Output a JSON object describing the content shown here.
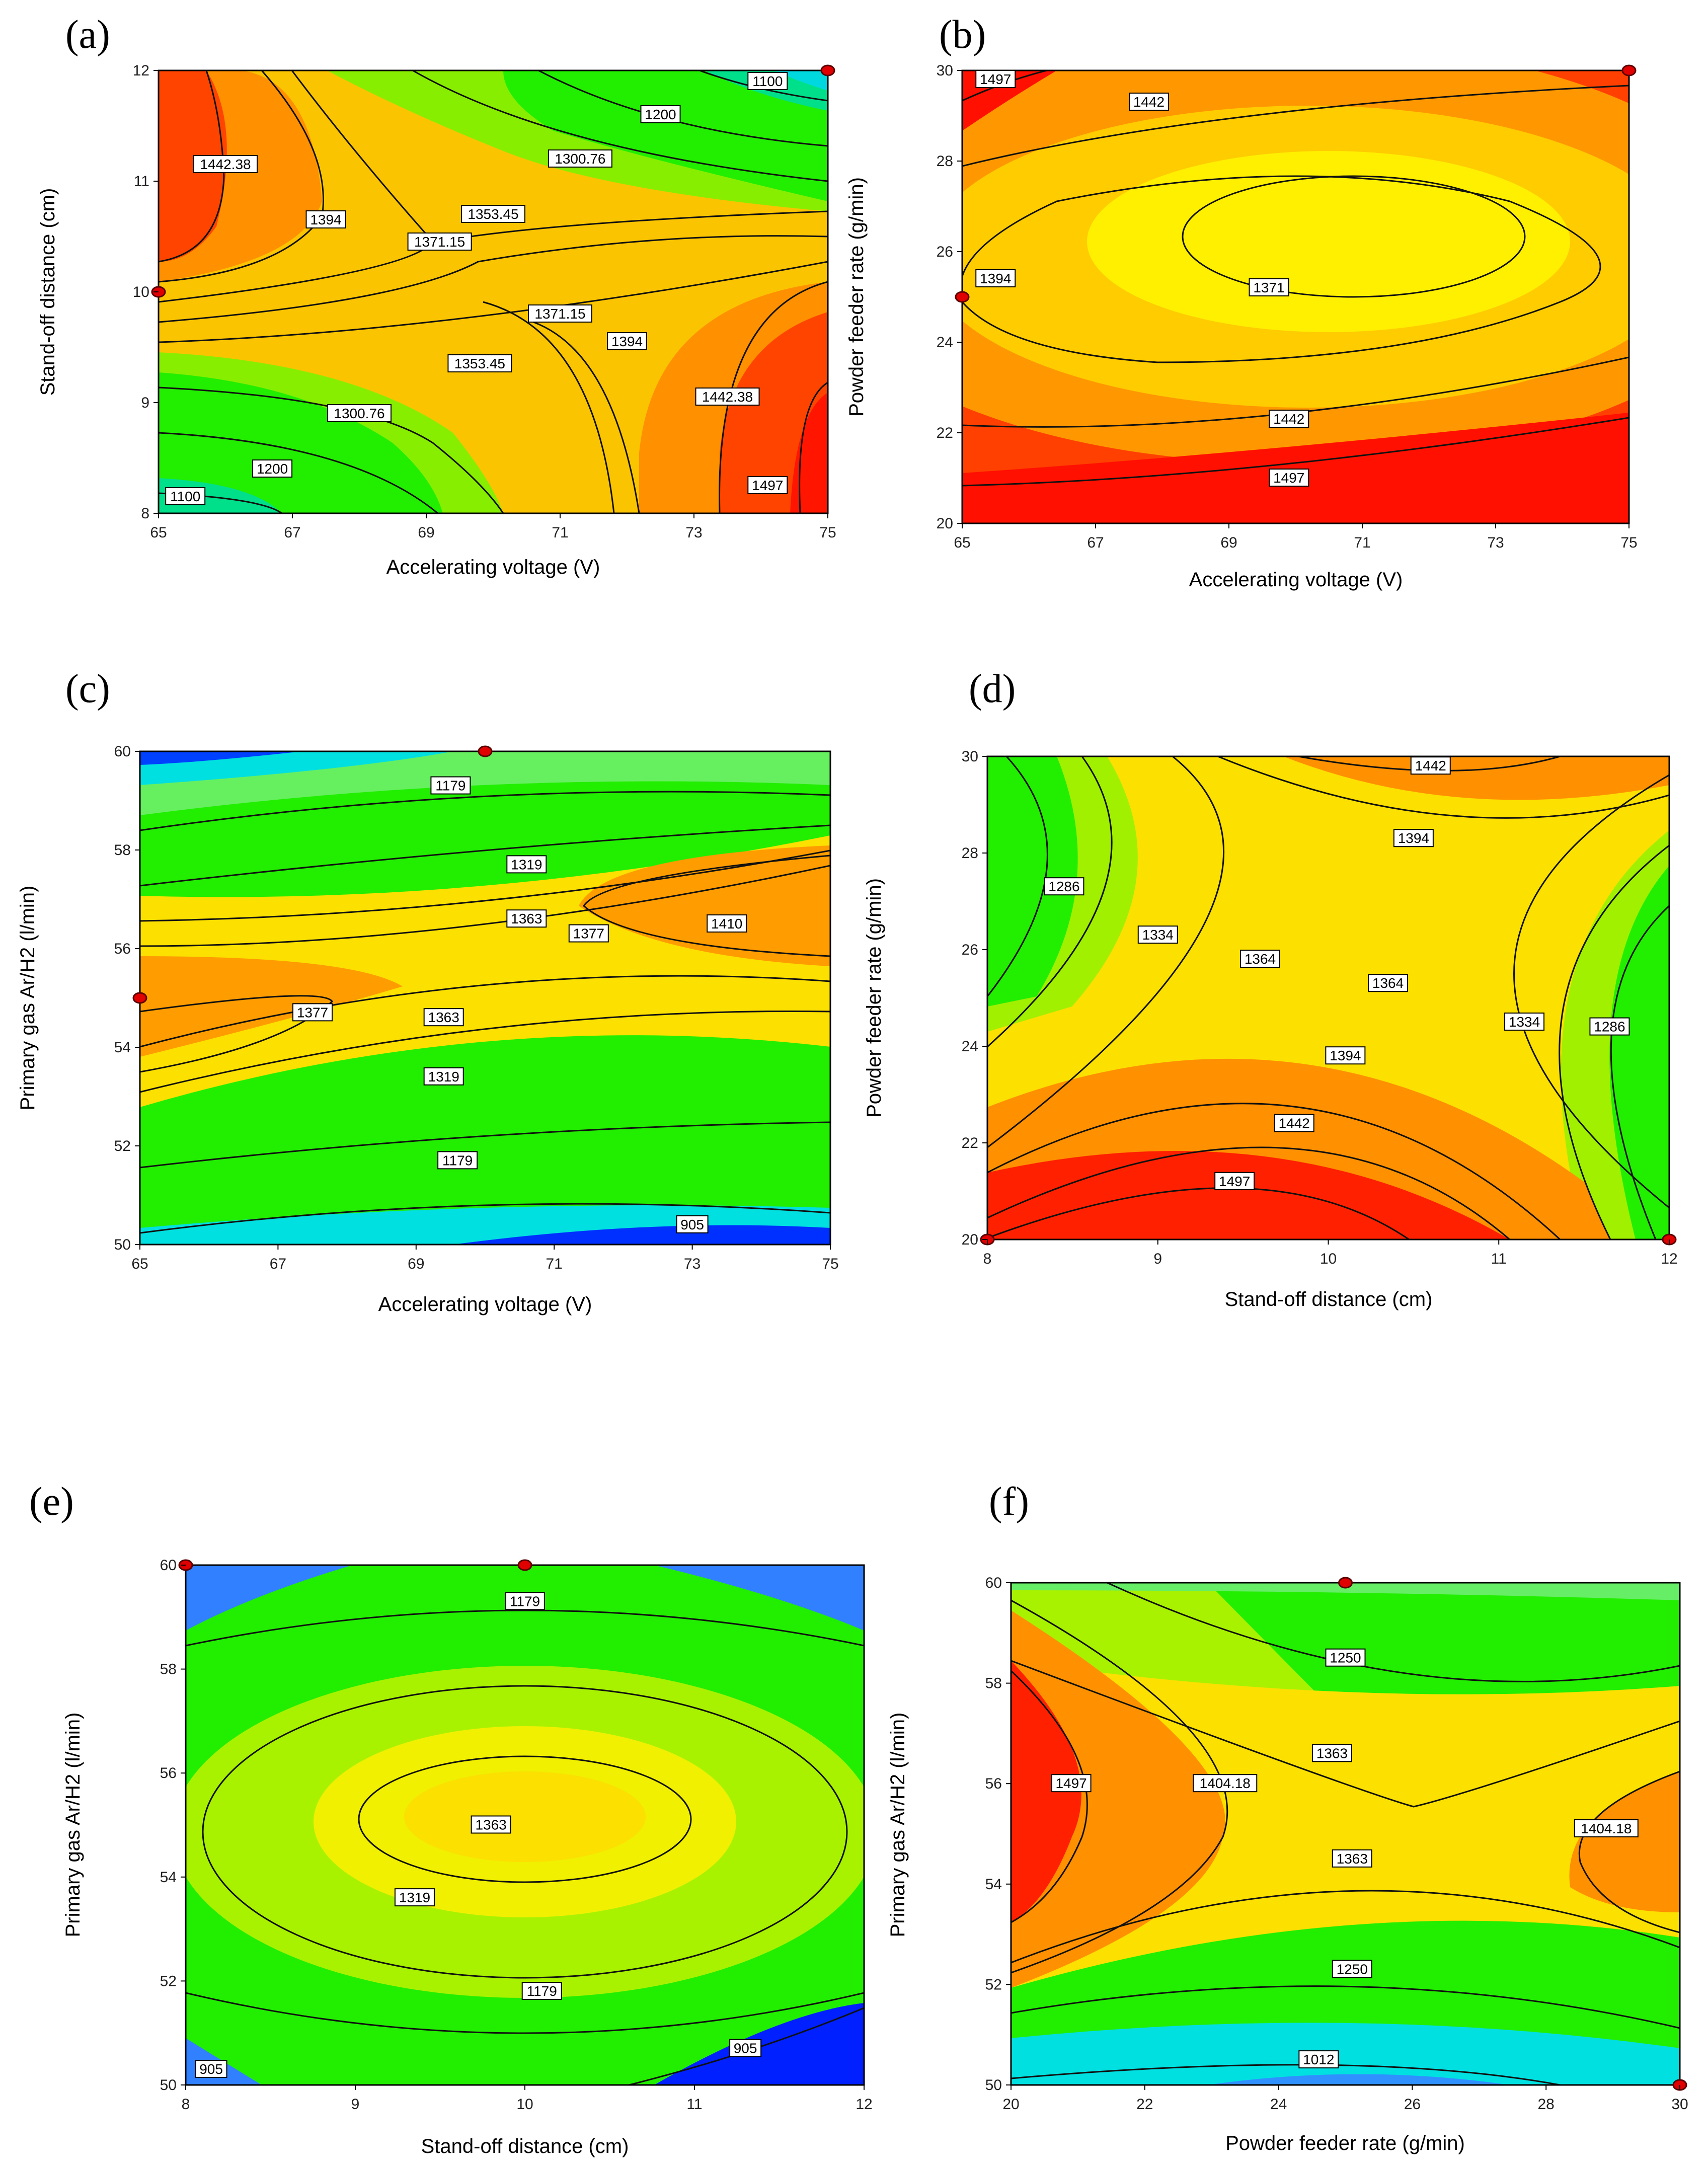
{
  "colors": {
    "blue": "#0000ff",
    "cyan": "#00ffff",
    "green": "#00ff00",
    "yellow": "#ffff00",
    "orange": "#ff9900",
    "red": "#ff0000",
    "contour": "#111111",
    "design_point": "#e00000"
  },
  "chart_data": [
    {
      "type": "contour",
      "panel_label": "(a)",
      "xlabel": "Accelerating voltage (V)",
      "ylabel": "Stand-off distance (cm)",
      "xlim": [
        65,
        75
      ],
      "ylim": [
        8,
        12
      ],
      "xticks": [
        65,
        67,
        69,
        71,
        73,
        75
      ],
      "yticks": [
        8,
        9,
        10,
        11,
        12
      ],
      "design_points": [
        [
          65,
          10
        ],
        [
          75,
          12
        ]
      ],
      "contour_labels": [
        {
          "text": "1100",
          "x": 74.1,
          "y": 11.9
        },
        {
          "text": "1200",
          "x": 72.5,
          "y": 11.6
        },
        {
          "text": "1300.76",
          "x": 71.3,
          "y": 11.2
        },
        {
          "text": "1353.45",
          "x": 70.0,
          "y": 10.7
        },
        {
          "text": "1371.15",
          "x": 69.2,
          "y": 10.45
        },
        {
          "text": "1394",
          "x": 67.5,
          "y": 10.65
        },
        {
          "text": "1442.38",
          "x": 66.0,
          "y": 11.15
        },
        {
          "text": "1371.15",
          "x": 71.0,
          "y": 9.8
        },
        {
          "text": "1394",
          "x": 72.0,
          "y": 9.55
        },
        {
          "text": "1353.45",
          "x": 69.8,
          "y": 9.35
        },
        {
          "text": "1442.38",
          "x": 73.5,
          "y": 9.05
        },
        {
          "text": "1300.76",
          "x": 68.0,
          "y": 8.9
        },
        {
          "text": "1200",
          "x": 66.7,
          "y": 8.4
        },
        {
          "text": "1100",
          "x": 65.4,
          "y": 8.15
        },
        {
          "text": "1497",
          "x": 74.1,
          "y": 8.25
        }
      ]
    },
    {
      "type": "contour",
      "panel_label": "(b)",
      "xlabel": "Accelerating voltage (V)",
      "ylabel": "Powder feeder rate (g/min)",
      "xlim": [
        65,
        75
      ],
      "ylim": [
        20,
        30
      ],
      "xticks": [
        65,
        67,
        69,
        71,
        73,
        75
      ],
      "yticks": [
        20,
        22,
        24,
        26,
        28,
        30
      ],
      "design_points": [
        [
          65,
          25
        ],
        [
          75,
          30
        ]
      ],
      "contour_labels": [
        {
          "text": "1497",
          "x": 65.5,
          "y": 29.8
        },
        {
          "text": "1442",
          "x": 67.8,
          "y": 29.3
        },
        {
          "text": "1394",
          "x": 65.5,
          "y": 25.4
        },
        {
          "text": "1371",
          "x": 69.6,
          "y": 25.2
        },
        {
          "text": "1442",
          "x": 69.9,
          "y": 22.3
        },
        {
          "text": "1497",
          "x": 69.9,
          "y": 21.0
        }
      ]
    },
    {
      "type": "contour",
      "panel_label": "(c)",
      "xlabel": "Accelerating voltage (V)",
      "ylabel": "Primary gas Ar/H2 (l/min)",
      "xlim": [
        65,
        75
      ],
      "ylim": [
        50,
        60
      ],
      "xticks": [
        65,
        67,
        69,
        71,
        73,
        75
      ],
      "yticks": [
        50,
        52,
        54,
        56,
        58,
        60
      ],
      "design_points": [
        [
          65,
          55
        ],
        [
          70,
          60
        ]
      ],
      "contour_labels": [
        {
          "text": "1179",
          "x": 69.5,
          "y": 59.3
        },
        {
          "text": "1319",
          "x": 70.6,
          "y": 57.7
        },
        {
          "text": "1363",
          "x": 70.6,
          "y": 56.6
        },
        {
          "text": "1377",
          "x": 71.5,
          "y": 56.3
        },
        {
          "text": "1410",
          "x": 73.5,
          "y": 56.5
        },
        {
          "text": "1377",
          "x": 67.5,
          "y": 54.7
        },
        {
          "text": "1363",
          "x": 69.4,
          "y": 54.6
        },
        {
          "text": "1319",
          "x": 69.4,
          "y": 53.4
        },
        {
          "text": "1179",
          "x": 69.6,
          "y": 51.7
        },
        {
          "text": "905",
          "x": 73.0,
          "y": 50.4
        }
      ]
    },
    {
      "type": "contour",
      "panel_label": "(d)",
      "xlabel": "Stand-off distance (cm)",
      "ylabel": "Powder feeder rate (g/min)",
      "xlim": [
        8,
        12
      ],
      "ylim": [
        20,
        30
      ],
      "xticks": [
        8,
        9,
        10,
        11,
        12
      ],
      "yticks": [
        20,
        22,
        24,
        26,
        28,
        30
      ],
      "design_points": [
        [
          8,
          20
        ],
        [
          12,
          20
        ]
      ],
      "contour_labels": [
        {
          "text": "1442",
          "x": 10.6,
          "y": 29.8
        },
        {
          "text": "1394",
          "x": 10.5,
          "y": 28.3
        },
        {
          "text": "1286",
          "x": 8.45,
          "y": 27.3
        },
        {
          "text": "1334",
          "x": 9.0,
          "y": 26.3
        },
        {
          "text": "1364",
          "x": 9.6,
          "y": 25.8
        },
        {
          "text": "1364",
          "x": 10.35,
          "y": 25.3
        },
        {
          "text": "1334",
          "x": 11.15,
          "y": 24.5
        },
        {
          "text": "1286",
          "x": 11.65,
          "y": 24.4
        },
        {
          "text": "1394",
          "x": 10.1,
          "y": 23.8
        },
        {
          "text": "1442",
          "x": 9.8,
          "y": 22.4
        },
        {
          "text": "1497",
          "x": 9.45,
          "y": 21.2
        }
      ]
    },
    {
      "type": "contour",
      "panel_label": "(e)",
      "xlabel": "Stand-off distance (cm)",
      "ylabel": "Primary gas Ar/H2 (l/min)",
      "xlim": [
        8,
        12
      ],
      "ylim": [
        50,
        60
      ],
      "xticks": [
        8,
        9,
        10,
        11,
        12
      ],
      "yticks": [
        50,
        52,
        54,
        56,
        58,
        60
      ],
      "design_points": [
        [
          8,
          60
        ],
        [
          10,
          60
        ]
      ],
      "contour_labels": [
        {
          "text": "1179",
          "x": 10.0,
          "y": 59.3
        },
        {
          "text": "1363",
          "x": 9.8,
          "y": 55.0
        },
        {
          "text": "1319",
          "x": 9.35,
          "y": 53.6
        },
        {
          "text": "1179",
          "x": 10.1,
          "y": 51.8
        },
        {
          "text": "905",
          "x": 8.15,
          "y": 50.3
        },
        {
          "text": "905",
          "x": 11.3,
          "y": 50.7
        }
      ]
    },
    {
      "type": "contour",
      "panel_label": "(f)",
      "xlabel": "Powder feeder rate (g/min)",
      "ylabel": "Primary gas Ar/H2 (l/min)",
      "xlim": [
        20,
        30
      ],
      "ylim": [
        50,
        60
      ],
      "xticks": [
        20,
        22,
        24,
        26,
        28,
        30
      ],
      "yticks": [
        50,
        52,
        54,
        56,
        58,
        60
      ],
      "design_points": [
        [
          25,
          60
        ],
        [
          30,
          50
        ]
      ],
      "contour_labels": [
        {
          "text": "1250",
          "x": 25.0,
          "y": 58.5
        },
        {
          "text": "1363",
          "x": 24.8,
          "y": 56.6
        },
        {
          "text": "1497",
          "x": 20.9,
          "y": 56.0
        },
        {
          "text": "1404.18",
          "x": 23.2,
          "y": 56.0
        },
        {
          "text": "1363",
          "x": 25.1,
          "y": 54.5
        },
        {
          "text": "1404.18",
          "x": 28.9,
          "y": 55.1
        },
        {
          "text": "1250",
          "x": 25.1,
          "y": 52.3
        },
        {
          "text": "1012",
          "x": 24.6,
          "y": 50.5
        }
      ]
    }
  ]
}
